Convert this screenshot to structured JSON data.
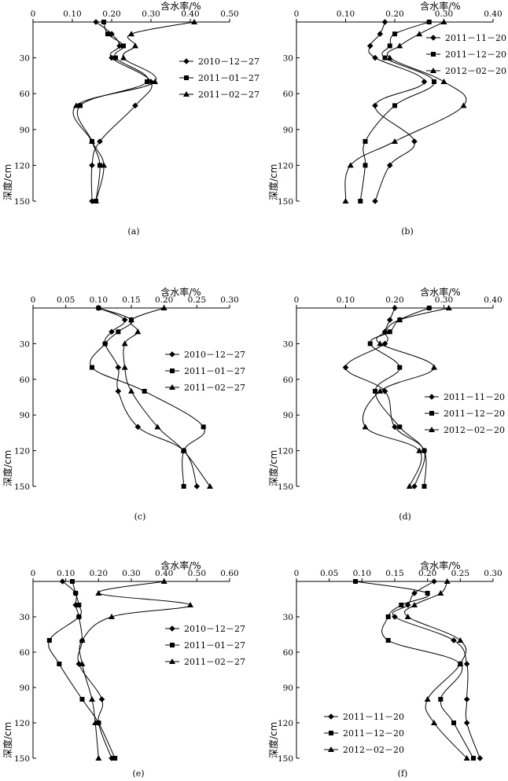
{
  "chart_data": [
    {
      "type": "line",
      "panel_label": "(a)",
      "xlabel": "含水率/%",
      "ylabel": "深度/cm",
      "xlim": [
        0,
        0.5
      ],
      "xticks": [
        0,
        0.1,
        0.2,
        0.3,
        0.4,
        0.5
      ],
      "xtick_labels": [
        "0",
        "0.10",
        "0.20",
        "0.30",
        "0.40",
        "0.50"
      ],
      "ylim": [
        0,
        150
      ],
      "yticks": [
        30,
        60,
        90,
        120,
        150
      ],
      "yticks_labels": [
        "30",
        "60",
        "90",
        "120",
        "150"
      ],
      "x_axis_position": "top",
      "legend_position": "right-upper",
      "series": [
        {
          "name": "2010－12－27",
          "marker": "diamond",
          "depth": [
            0,
            10,
            20,
            30,
            50,
            70,
            100,
            120,
            150
          ],
          "values": [
            0.16,
            0.2,
            0.22,
            0.2,
            0.3,
            0.26,
            0.17,
            0.15,
            0.15
          ]
        },
        {
          "name": "2011－01－27",
          "marker": "square",
          "depth": [
            0,
            10,
            20,
            30,
            50,
            70,
            100,
            120,
            150
          ],
          "values": [
            0.18,
            0.19,
            0.23,
            0.21,
            0.29,
            0.12,
            0.15,
            0.17,
            0.16
          ]
        },
        {
          "name": "2011－02－27",
          "marker": "triangle",
          "depth": [
            0,
            10,
            20,
            30,
            50,
            70,
            100,
            120,
            150
          ],
          "values": [
            0.41,
            0.25,
            0.26,
            0.23,
            0.31,
            0.11,
            0.15,
            0.18,
            0.16
          ]
        }
      ]
    },
    {
      "type": "line",
      "panel_label": "(b)",
      "xlabel": "含水率/%",
      "ylabel": "深度/cm",
      "xlim": [
        0,
        0.4
      ],
      "xticks": [
        0,
        0.1,
        0.2,
        0.3,
        0.4
      ],
      "xtick_labels": [
        "0",
        "0.10",
        "0.20",
        "0.30",
        "0.40"
      ],
      "ylim": [
        0,
        150
      ],
      "yticks": [
        30,
        60,
        90,
        120,
        150
      ],
      "yticks_labels": [
        "30",
        "60",
        "90",
        "120",
        "150"
      ],
      "x_axis_position": "top",
      "legend_position": "right-upper",
      "series": [
        {
          "name": "2011－11－20",
          "marker": "diamond",
          "depth": [
            0,
            10,
            20,
            30,
            50,
            70,
            100,
            120,
            150
          ],
          "values": [
            0.18,
            0.17,
            0.15,
            0.16,
            0.26,
            0.16,
            0.24,
            0.19,
            0.16
          ]
        },
        {
          "name": "2011－12－20",
          "marker": "square",
          "depth": [
            0,
            10,
            20,
            30,
            50,
            70,
            100,
            120,
            150
          ],
          "values": [
            0.27,
            0.2,
            0.19,
            0.18,
            0.28,
            0.2,
            0.14,
            0.14,
            0.13
          ]
        },
        {
          "name": "2012－02－20",
          "marker": "triangle",
          "depth": [
            0,
            10,
            20,
            30,
            50,
            70,
            100,
            120,
            150
          ],
          "values": [
            0.3,
            0.25,
            0.21,
            0.19,
            0.3,
            0.34,
            0.2,
            0.11,
            0.1
          ]
        }
      ]
    },
    {
      "type": "line",
      "panel_label": "(c)",
      "xlabel": "含水率/%",
      "ylabel": "深度/cm",
      "xlim": [
        0,
        0.3
      ],
      "xticks": [
        0,
        0.05,
        0.1,
        0.15,
        0.2,
        0.25,
        0.3
      ],
      "xtick_labels": [
        "0",
        "0.05",
        "0.10",
        "0.15",
        "0.20",
        "0.25",
        "0.30"
      ],
      "ylim": [
        0,
        150
      ],
      "yticks": [
        30,
        60,
        90,
        120,
        150
      ],
      "yticks_labels": [
        "30",
        "60",
        "90",
        "120",
        "150"
      ],
      "x_axis_position": "top",
      "legend_position": "right-middle",
      "series": [
        {
          "name": "2010－12－27",
          "marker": "diamond",
          "depth": [
            0,
            10,
            20,
            30,
            50,
            70,
            100,
            120,
            150
          ],
          "values": [
            0.1,
            0.14,
            0.12,
            0.11,
            0.13,
            0.13,
            0.16,
            0.23,
            0.25
          ]
        },
        {
          "name": "2011－01－27",
          "marker": "square",
          "depth": [
            0,
            10,
            20,
            30,
            50,
            70,
            100,
            120,
            150
          ],
          "values": [
            0.1,
            0.15,
            0.13,
            0.11,
            0.09,
            0.17,
            0.26,
            0.23,
            0.23
          ]
        },
        {
          "name": "2011－02－27",
          "marker": "triangle",
          "depth": [
            0,
            10,
            20,
            30,
            50,
            70,
            100,
            120,
            150
          ],
          "values": [
            0.2,
            0.15,
            0.16,
            0.14,
            0.14,
            0.15,
            0.19,
            0.23,
            0.27
          ]
        }
      ]
    },
    {
      "type": "line",
      "panel_label": "(d)",
      "xlabel": "含水率/%",
      "ylabel": "深度/cm",
      "xlim": [
        0,
        0.4
      ],
      "xticks": [
        0,
        0.1,
        0.2,
        0.3,
        0.4
      ],
      "xtick_labels": [
        "0",
        "0.10",
        "0.20",
        "0.30",
        "0.40"
      ],
      "ylim": [
        0,
        150
      ],
      "yticks": [
        30,
        60,
        90,
        120,
        150
      ],
      "yticks_labels": [
        "30",
        "60",
        "90",
        "120",
        "150"
      ],
      "x_axis_position": "top",
      "legend_position": "right-lower",
      "series": [
        {
          "name": "2011－11－20",
          "marker": "diamond",
          "depth": [
            0,
            10,
            20,
            30,
            50,
            70,
            100,
            120,
            150
          ],
          "values": [
            0.2,
            0.19,
            0.18,
            0.18,
            0.1,
            0.18,
            0.2,
            0.26,
            0.24
          ]
        },
        {
          "name": "2011－12－20",
          "marker": "square",
          "depth": [
            0,
            10,
            20,
            30,
            50,
            70,
            100,
            120,
            150
          ],
          "values": [
            0.27,
            0.21,
            0.19,
            0.15,
            0.21,
            0.16,
            0.21,
            0.26,
            0.26
          ]
        },
        {
          "name": "2012－02－20",
          "marker": "triangle",
          "depth": [
            0,
            10,
            20,
            30,
            50,
            70,
            100,
            120,
            150
          ],
          "values": [
            0.31,
            0.21,
            0.18,
            0.17,
            0.28,
            0.17,
            0.14,
            0.25,
            0.23
          ]
        }
      ]
    },
    {
      "type": "line",
      "panel_label": "(e)",
      "xlabel": "含水率/%",
      "ylabel": "深度/cm",
      "xlim": [
        0,
        0.6
      ],
      "xticks": [
        0,
        0.1,
        0.2,
        0.3,
        0.4,
        0.5,
        0.6
      ],
      "xtick_labels": [
        "0",
        "0.10",
        "0.20",
        "0.30",
        "0.40",
        "0.50",
        "0.60"
      ],
      "ylim": [
        0,
        150
      ],
      "yticks": [
        30,
        60,
        90,
        120,
        150
      ],
      "yticks_labels": [
        "30",
        "60",
        "90",
        "120",
        "150"
      ],
      "x_axis_position": "top",
      "legend_position": "right-middle",
      "series": [
        {
          "name": "2010－12－27",
          "marker": "diamond",
          "depth": [
            0,
            10,
            20,
            30,
            50,
            70,
            100,
            120,
            150
          ],
          "values": [
            0.09,
            0.13,
            0.13,
            0.14,
            0.15,
            0.14,
            0.21,
            0.2,
            0.24
          ]
        },
        {
          "name": "2011－01－27",
          "marker": "square",
          "depth": [
            0,
            10,
            20,
            30,
            50,
            70,
            100,
            120,
            150
          ],
          "values": [
            0.12,
            0.13,
            0.14,
            0.14,
            0.05,
            0.08,
            0.15,
            0.2,
            0.25
          ]
        },
        {
          "name": "2011－02－27",
          "marker": "triangle",
          "depth": [
            0,
            10,
            20,
            30,
            50,
            70,
            100,
            120,
            150
          ],
          "values": [
            0.4,
            0.2,
            0.48,
            0.24,
            0.15,
            0.15,
            0.18,
            0.19,
            0.2
          ]
        }
      ]
    },
    {
      "type": "line",
      "panel_label": "(f)",
      "xlabel": "含水率/%",
      "ylabel": "深度/cm",
      "xlim": [
        0,
        0.3
      ],
      "xticks": [
        0,
        0.05,
        0.1,
        0.15,
        0.2,
        0.25,
        0.3
      ],
      "xtick_labels": [
        "0",
        "0.05",
        "0.10",
        "0.15",
        "0.20",
        "0.25",
        "0.30"
      ],
      "ylim": [
        0,
        150
      ],
      "yticks": [
        30,
        60,
        90,
        120,
        150
      ],
      "yticks_labels": [
        "30",
        "60",
        "90",
        "120",
        "150"
      ],
      "x_axis_position": "top",
      "legend_position": "left-lower",
      "series": [
        {
          "name": "2011－11－20",
          "marker": "diamond",
          "depth": [
            0,
            10,
            20,
            30,
            50,
            70,
            100,
            120,
            150
          ],
          "values": [
            0.21,
            0.18,
            0.17,
            0.15,
            0.24,
            0.26,
            0.26,
            0.26,
            0.28
          ]
        },
        {
          "name": "2011－12－20",
          "marker": "square",
          "depth": [
            0,
            10,
            20,
            30,
            50,
            70,
            100,
            120,
            150
          ],
          "values": [
            0.09,
            0.2,
            0.16,
            0.14,
            0.14,
            0.25,
            0.22,
            0.24,
            0.27
          ]
        },
        {
          "name": "2012－02－20",
          "marker": "triangle",
          "depth": [
            0,
            10,
            20,
            30,
            50,
            70,
            100,
            120,
            150
          ],
          "values": [
            0.23,
            0.22,
            0.18,
            0.17,
            0.25,
            0.25,
            0.2,
            0.21,
            0.26
          ]
        }
      ]
    }
  ]
}
